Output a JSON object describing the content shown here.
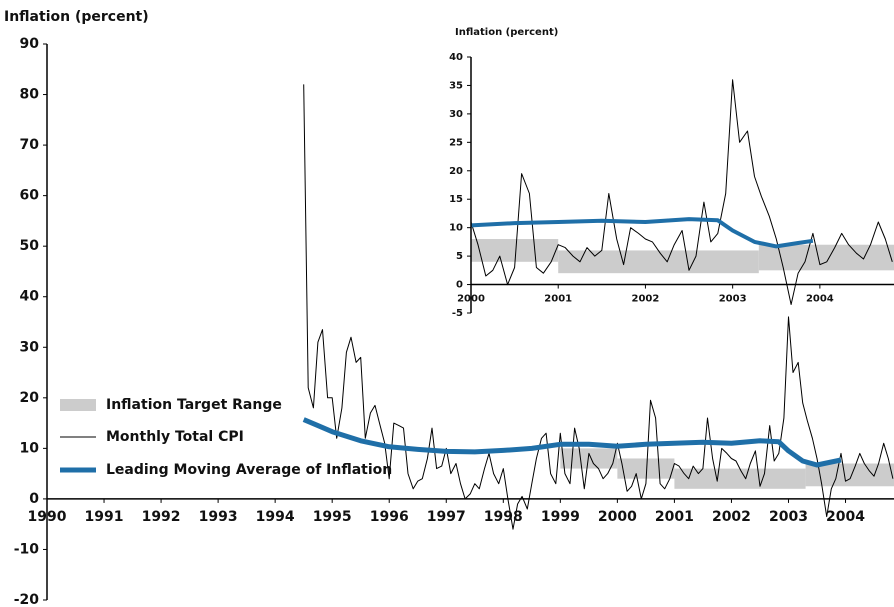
{
  "chart_data": {
    "type": "line",
    "title": "Inflation (percent)",
    "xlim": [
      1990,
      2004.85
    ],
    "ylim": [
      -20,
      90
    ],
    "xticks": [
      1990,
      1991,
      1992,
      1993,
      1994,
      1995,
      1996,
      1997,
      1998,
      1999,
      2000,
      2001,
      2002,
      2003,
      2004
    ],
    "yticks": [
      -20,
      -10,
      0,
      10,
      20,
      30,
      40,
      50,
      60,
      70,
      80,
      90
    ],
    "series": [
      {
        "name": "Inflation Target Range",
        "type": "band",
        "color": "#cccccc",
        "x": [
          1999.0,
          2000.0,
          2001.0,
          2003.3
        ],
        "lower": [
          6,
          4,
          2,
          2.5
        ],
        "upper": [
          10,
          8,
          6,
          7
        ]
      },
      {
        "name": "Monthly Total CPI",
        "color": "#000000",
        "x": [
          1994.5,
          1994.58,
          1994.67,
          1994.75,
          1994.83,
          1994.92,
          1995.0,
          1995.08,
          1995.17,
          1995.25,
          1995.33,
          1995.42,
          1995.5,
          1995.58,
          1995.67,
          1995.75,
          1995.83,
          1995.92,
          1996.0,
          1996.08,
          1996.17,
          1996.25,
          1996.33,
          1996.42,
          1996.5,
          1996.58,
          1996.67,
          1996.75,
          1996.83,
          1996.92,
          1997.0,
          1997.08,
          1997.17,
          1997.25,
          1997.33,
          1997.42,
          1997.5,
          1997.58,
          1997.67,
          1997.75,
          1997.83,
          1997.92,
          1998.0,
          1998.08,
          1998.17,
          1998.25,
          1998.33,
          1998.42,
          1998.5,
          1998.58,
          1998.67,
          1998.75,
          1998.83,
          1998.92,
          1999.0,
          1999.08,
          1999.17,
          1999.25,
          1999.33,
          1999.42,
          1999.5,
          1999.58,
          1999.67,
          1999.75,
          1999.83,
          1999.92,
          2000.0,
          2000.08,
          2000.17,
          2000.25,
          2000.33,
          2000.42,
          2000.5,
          2000.58,
          2000.67,
          2000.75,
          2000.83,
          2000.92,
          2001.0,
          2001.08,
          2001.17,
          2001.25,
          2001.33,
          2001.42,
          2001.5,
          2001.58,
          2001.67,
          2001.75,
          2001.83,
          2001.92,
          2002.0,
          2002.08,
          2002.17,
          2002.25,
          2002.33,
          2002.42,
          2002.5,
          2002.58,
          2002.67,
          2002.75,
          2002.83,
          2002.92,
          2003.0,
          2003.08,
          2003.17,
          2003.25,
          2003.33,
          2003.42,
          2003.5,
          2003.58,
          2003.67,
          2003.75,
          2003.83,
          2003.92,
          2004.0,
          2004.08,
          2004.17,
          2004.25,
          2004.33,
          2004.42,
          2004.5,
          2004.58,
          2004.67,
          2004.75,
          2004.83
        ],
        "values": [
          82,
          22,
          18,
          31,
          33.5,
          20,
          20,
          12,
          18,
          29,
          32,
          27,
          28,
          12,
          17,
          18.5,
          15,
          11,
          4,
          15,
          14.5,
          14,
          5,
          2,
          3.5,
          4,
          8,
          14,
          6,
          6.5,
          10,
          5,
          7,
          3,
          0,
          1,
          3,
          2,
          6,
          9,
          5,
          3,
          6,
          0,
          -6,
          -1,
          0.5,
          -2,
          3,
          8,
          12,
          13,
          5,
          3,
          13,
          5,
          3,
          14,
          10,
          2,
          9,
          7,
          6,
          4,
          5,
          7,
          11,
          7,
          1.5,
          2.5,
          5,
          0,
          3,
          19.5,
          16,
          3,
          2,
          4,
          7,
          6.5,
          5,
          4,
          6.5,
          5,
          6,
          16,
          8,
          3.5,
          10,
          9,
          8,
          7.5,
          5.5,
          4,
          7,
          9.5,
          2.5,
          5,
          14.5,
          7.5,
          9,
          16,
          36,
          25,
          27,
          19,
          15.5,
          12,
          8,
          3,
          -3.5,
          2,
          4,
          9,
          3.5,
          4,
          6.5,
          9,
          7,
          5.5,
          4.5,
          7,
          11,
          8,
          4
        ]
      },
      {
        "name": "Leading Moving Average of Inflation",
        "color": "#1f6fa8",
        "x": [
          1994.5,
          1994.75,
          1995.0,
          1995.5,
          1996.0,
          1996.5,
          1997.0,
          1997.5,
          1998.0,
          1998.5,
          1999.0,
          1999.5,
          2000.0,
          2000.5,
          2001.0,
          2001.5,
          2002.0,
          2002.5,
          2002.83,
          2003.0,
          2003.25,
          2003.5,
          2003.75,
          2003.92
        ],
        "values": [
          15.7,
          14.5,
          13.3,
          11.5,
          10.3,
          9.8,
          9.4,
          9.3,
          9.6,
          10.0,
          10.8,
          10.8,
          10.4,
          10.8,
          11.0,
          11.2,
          11.0,
          11.5,
          11.3,
          9.5,
          7.5,
          6.7,
          7.3,
          7.7
        ]
      }
    ],
    "inset": {
      "title": "Inflation (percent)",
      "xlim": [
        2000,
        2004.85
      ],
      "ylim": [
        -5,
        40
      ],
      "xticks": [
        2000,
        2001,
        2002,
        2003,
        2004
      ],
      "yticks": [
        -5,
        0,
        5,
        10,
        15,
        20,
        25,
        30,
        35,
        40
      ]
    }
  }
}
